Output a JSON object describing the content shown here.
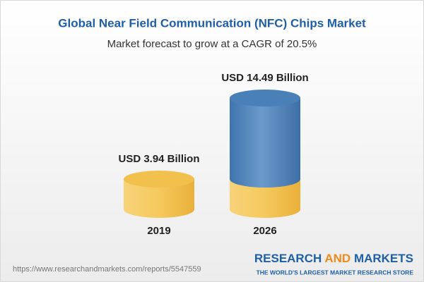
{
  "chart_data": {
    "type": "cylinder",
    "title": "Global Near Field Communication (NFC) Chips Market",
    "subtitle": "Market forecast to grow at a CAGR of 20.5%",
    "categories": [
      "2019",
      "2026"
    ],
    "values": [
      3.94,
      14.49
    ],
    "value_labels": [
      "USD 3.94 Billion",
      "USD 14.49 Billion"
    ],
    "color": "#f2c04c",
    "highlight_color": "#4a80b8"
  },
  "footer": {
    "url": "https://www.researchandmarkets.com/reports/5547559",
    "brand": [
      "RESEARCH",
      "AND",
      "MARKETS"
    ],
    "tagline": "THE WORLD'S LARGEST MARKET RESEARCH STORE"
  }
}
